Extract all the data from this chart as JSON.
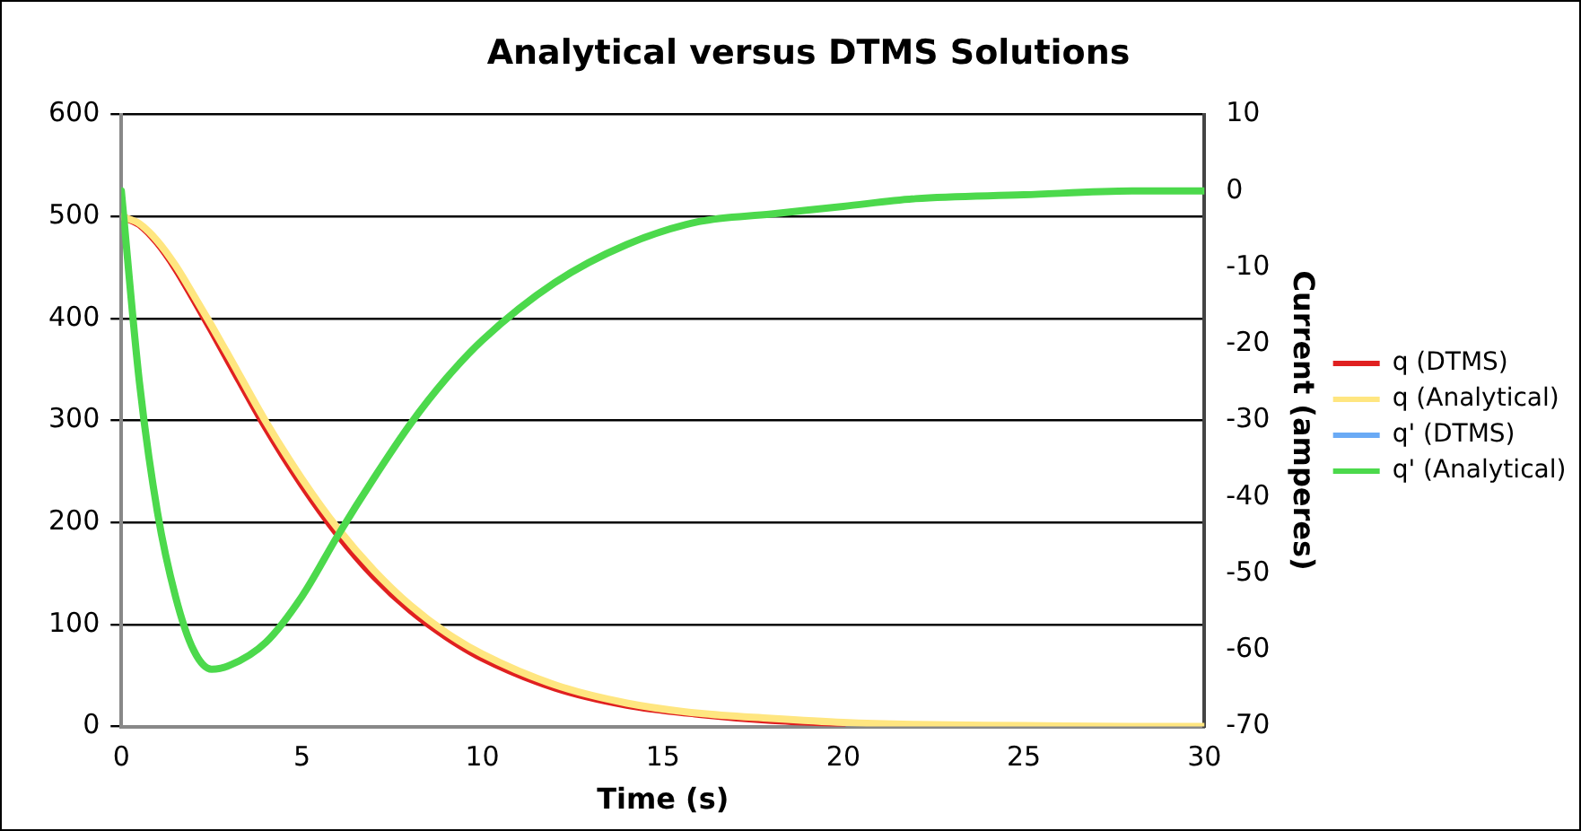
{
  "chart_data": {
    "type": "line",
    "title": "Analytical versus DTMS Solutions",
    "xlabel": "Time (s)",
    "y2label": "Current (amperes)",
    "x": [
      0,
      0.5,
      1,
      1.5,
      2,
      2.5,
      3,
      4,
      5,
      6,
      7,
      8,
      9,
      10,
      12,
      14,
      16,
      18,
      20,
      22,
      25,
      28,
      30
    ],
    "series": [
      {
        "name": "q (DTMS)",
        "color": "#e02020",
        "values": [
          500,
          492,
          474,
          449,
          419,
          388,
          356,
          293,
          237,
          188,
          147,
          114,
          88,
          67,
          38,
          21,
          12,
          6,
          3,
          null,
          null,
          null,
          null
        ]
      },
      {
        "name": "q (Analytical)",
        "color": "#ffe680",
        "values": [
          500,
          493,
          476,
          452,
          423,
          393,
          362,
          299,
          243,
          194,
          153,
          119,
          92,
          71,
          41,
          23,
          13,
          8,
          4,
          2,
          1,
          0,
          0
        ]
      },
      {
        "name": "q' (DTMS)",
        "color": "#6aaaf5",
        "axis": "y2",
        "values": [
          null,
          null,
          null,
          null,
          null,
          null,
          null,
          null,
          null,
          null,
          null,
          null,
          null,
          null,
          null,
          null,
          null,
          null,
          null,
          null,
          null,
          null,
          null
        ]
      },
      {
        "name": "q' (Analytical)",
        "color": "#4cd94c",
        "axis": "y2",
        "values": [
          0,
          -25,
          -42,
          -53,
          -60,
          -62.5,
          -62,
          -59,
          -53,
          -45,
          -37.5,
          -30.5,
          -24.5,
          -19.5,
          -12,
          -7,
          -4,
          -3,
          -2,
          -1,
          -0.5,
          0,
          0
        ]
      }
    ],
    "xlim": [
      0,
      30
    ],
    "xticks": [
      0,
      5,
      10,
      15,
      20,
      25,
      30
    ],
    "ylim": [
      0,
      600
    ],
    "yticks": [
      0,
      100,
      200,
      300,
      400,
      500,
      600
    ],
    "y2lim": [
      -70,
      10
    ],
    "y2ticks": [
      -70,
      -60,
      -50,
      -40,
      -30,
      -20,
      -10,
      0,
      10
    ],
    "grid": "y",
    "legend": "right",
    "marker": "none",
    "line_style": "solid"
  }
}
